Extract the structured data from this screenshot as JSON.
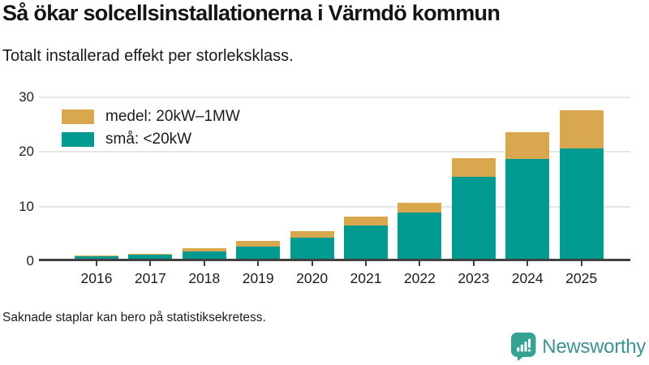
{
  "header": {
    "title": "Så ökar solcellsinstallationerna i Värmdö kommun",
    "subtitle": "Totalt installerad effekt per storleksklass."
  },
  "chart_data": {
    "type": "bar",
    "stacked": true,
    "title": "Så ökar solcellsinstallationerna i Värmdö kommun",
    "subtitle": "Totalt installerad effekt per storleksklass.",
    "categories": [
      "2016",
      "2017",
      "2018",
      "2019",
      "2020",
      "2021",
      "2022",
      "2023",
      "2024",
      "2025"
    ],
    "series": [
      {
        "name": "medel: 20kW–1MW",
        "color": "#d9a84e",
        "stack_position": "top",
        "values": [
          0.1,
          0.1,
          0.6,
          0.9,
          1.1,
          1.6,
          1.8,
          3.4,
          5.0,
          7.0
        ]
      },
      {
        "name": "små: <20kW",
        "color": "#009a91",
        "stack_position": "bottom",
        "values": [
          0.5,
          0.8,
          1.3,
          2.3,
          3.9,
          6.1,
          8.4,
          15.0,
          18.2,
          20.2
        ]
      }
    ],
    "totals": [
      0.6,
      0.9,
      1.9,
      3.2,
      5.0,
      7.7,
      10.2,
      18.4,
      23.2,
      27.2
    ],
    "xlabel": "",
    "ylabel": "",
    "ylim": [
      0,
      30
    ],
    "yticks": [
      0,
      10,
      20,
      30
    ],
    "grid": true,
    "legend_position": "top-left"
  },
  "footer": {
    "note": "Saknade staplar kan bero på statistiksekretess."
  },
  "logo": {
    "text": "Newsworthy",
    "icon": "newsworthy-speech-bubble-bar-chart-icon",
    "icon_color": "#35a391",
    "text_color": "#3d928e"
  },
  "colors": {
    "bar_small": "#009a91",
    "bar_medium": "#d9a84e",
    "axis_line": "#404040",
    "gridline": "#e6e6e6",
    "background": "#ffffff"
  }
}
